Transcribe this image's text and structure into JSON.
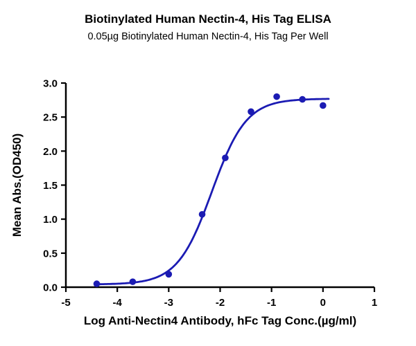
{
  "chart_data": {
    "type": "scatter",
    "title": "Biotinylated Human Nectin-4, His Tag ELISA",
    "subtitle": "0.05µg Biotinylated Human Nectin-4, His Tag Per Well",
    "xlabel": "Log Anti-Nectin4 Antibody, hFc Tag Conc.(µg/ml)",
    "ylabel": "Mean Abs.(OD450)",
    "xlim": [
      -5,
      1
    ],
    "ylim": [
      0,
      3
    ],
    "x_ticks": [
      -5,
      -4,
      -3,
      -2,
      -1,
      0,
      1
    ],
    "y_ticks": [
      0,
      0.5,
      1,
      1.5,
      2,
      2.5,
      3
    ],
    "grid": false,
    "legend": "none",
    "points": [
      {
        "x": -4.4,
        "y": 0.05
      },
      {
        "x": -3.7,
        "y": 0.08
      },
      {
        "x": -3.0,
        "y": 0.19
      },
      {
        "x": -2.35,
        "y": 1.07
      },
      {
        "x": -1.9,
        "y": 1.9
      },
      {
        "x": -1.4,
        "y": 2.58
      },
      {
        "x": -0.9,
        "y": 2.8
      },
      {
        "x": -0.4,
        "y": 2.76
      },
      {
        "x": 0.0,
        "y": 2.67
      }
    ],
    "fit": {
      "model": "4PL-sigmoid",
      "bottom": 0.04,
      "top": 2.77,
      "logEC50": -2.16,
      "hill": 1.3
    },
    "curve_x_range": [
      -4.42,
      0.12
    ],
    "series_color": "#1b1bb3",
    "axis_color": "#000000"
  }
}
